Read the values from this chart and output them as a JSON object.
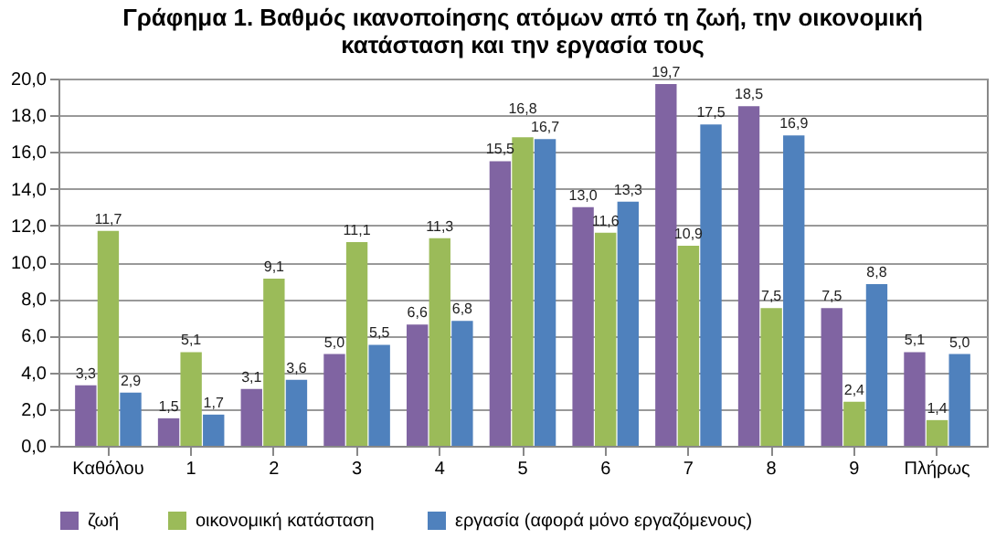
{
  "chart_data": {
    "type": "bar",
    "title": "Γράφημα 1. Βαθμός ικανοποίησης ατόμων από τη ζωή, την οικονομική κατάσταση και την εργασία τους",
    "categories": [
      "Καθόλου",
      "1",
      "2",
      "3",
      "4",
      "5",
      "6",
      "7",
      "8",
      "9",
      "Πλήρως"
    ],
    "series": [
      {
        "name": "ζωή",
        "color": "#8064a2",
        "values": [
          3.3,
          1.5,
          3.1,
          5.0,
          6.6,
          15.5,
          13.0,
          19.7,
          18.5,
          7.5,
          5.1
        ],
        "value_labels": [
          "3,3",
          "1,5",
          "3,1",
          "5,0",
          "6,6",
          "15,5",
          "13,0",
          "19,7",
          "18,5",
          "7,5",
          "5,1"
        ]
      },
      {
        "name": "οικονομική  κατάσταση",
        "color": "#9bbb59",
        "values": [
          11.7,
          5.1,
          9.1,
          11.1,
          11.3,
          16.8,
          11.6,
          10.9,
          7.5,
          2.4,
          1.4
        ],
        "value_labels": [
          "11,7",
          "5,1",
          "9,1",
          "11,1",
          "11,3",
          "16,8",
          "11,6",
          "10,9",
          "7,5",
          "2,4",
          "1,4"
        ]
      },
      {
        "name": "εργασία (αφορά μόνο εργαζόμενους)",
        "color": "#4f81bd",
        "values": [
          2.9,
          1.7,
          3.6,
          5.5,
          6.8,
          16.7,
          13.3,
          17.5,
          16.9,
          8.8,
          5.0
        ],
        "value_labels": [
          "2,9",
          "1,7",
          "3,6",
          "5,5",
          "6,8",
          "16,7",
          "13,3",
          "17,5",
          "16,9",
          "8,8",
          "5,0"
        ]
      }
    ],
    "ylim": [
      0,
      20
    ],
    "yticks": [
      {
        "value": 0,
        "label": "0,0"
      },
      {
        "value": 2,
        "label": "2,0"
      },
      {
        "value": 4,
        "label": "4,0"
      },
      {
        "value": 6,
        "label": "6,0"
      },
      {
        "value": 8,
        "label": "8,0"
      },
      {
        "value": 10,
        "label": "10,0"
      },
      {
        "value": 12,
        "label": "12,0"
      },
      {
        "value": 14,
        "label": "14,0"
      },
      {
        "value": 16,
        "label": "16,0"
      },
      {
        "value": 18,
        "label": "18,0"
      },
      {
        "value": 20,
        "label": "20,0"
      }
    ],
    "grid": "y",
    "legend": "bottom"
  }
}
